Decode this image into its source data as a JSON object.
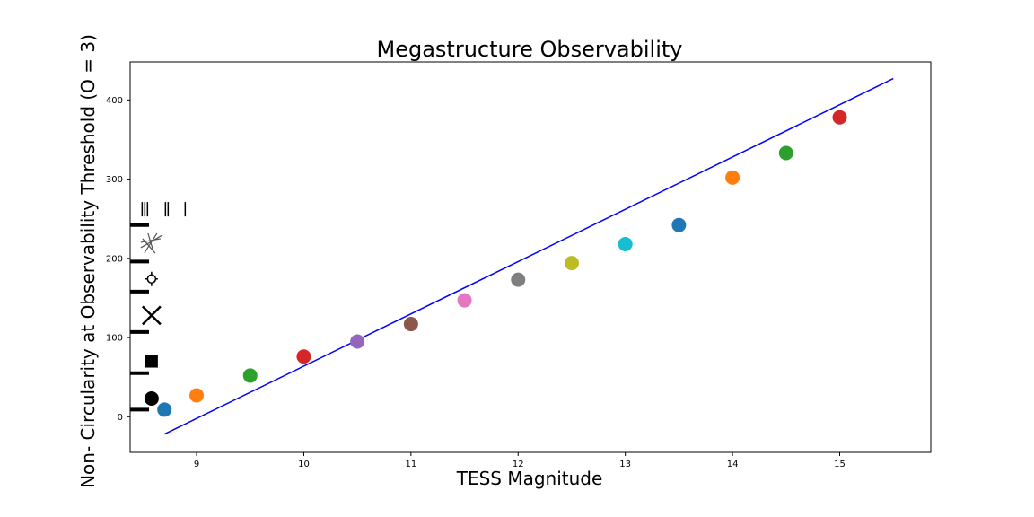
{
  "chart_data": {
    "type": "scatter",
    "title": "Megastructure Observability",
    "xlabel": "TESS Magnitude",
    "ylabel": "Non- Circularity at Observability Threshold (O = 3)",
    "xlim": [
      8.38,
      15.85
    ],
    "ylim": [
      -45,
      448
    ],
    "xticks": [
      9,
      10,
      11,
      12,
      13,
      14,
      15
    ],
    "yticks": [
      0,
      100,
      200,
      300,
      400
    ],
    "grid": false,
    "legend": "none",
    "series": [
      {
        "type": "scatter",
        "colors": [
          "#1f77b4",
          "#ff7f0e",
          "#2ca02c",
          "#d62728",
          "#9467bd",
          "#8c564b",
          "#e377c2",
          "#7f7f7f",
          "#bcbd22",
          "#17becf",
          "#1f77b4",
          "#ff7f0e",
          "#2ca02c",
          "#d62728"
        ],
        "points": [
          {
            "x": 8.7,
            "y": 9
          },
          {
            "x": 9.0,
            "y": 27
          },
          {
            "x": 9.5,
            "y": 52
          },
          {
            "x": 10.0,
            "y": 76
          },
          {
            "x": 10.5,
            "y": 95
          },
          {
            "x": 11.0,
            "y": 117
          },
          {
            "x": 11.5,
            "y": 147
          },
          {
            "x": 12.0,
            "y": 173
          },
          {
            "x": 12.5,
            "y": 194
          },
          {
            "x": 13.0,
            "y": 218
          },
          {
            "x": 13.5,
            "y": 242
          },
          {
            "x": 14.0,
            "y": 302
          },
          {
            "x": 14.5,
            "y": 333
          },
          {
            "x": 15.0,
            "y": 378
          }
        ]
      },
      {
        "type": "line",
        "color": "#0000ff",
        "points": [
          {
            "x": 8.7,
            "y": -22
          },
          {
            "x": 15.5,
            "y": 427
          }
        ]
      }
    ],
    "marker_samples": [
      {
        "marker": "circle",
        "x": 8.58,
        "y": 23
      },
      {
        "marker": "square",
        "x": 8.58,
        "y": 70
      },
      {
        "marker": "x",
        "x": 8.58,
        "y": 128
      },
      {
        "marker": "sun",
        "x": 8.58,
        "y": 174
      },
      {
        "marker": "star-burst",
        "x": 8.58,
        "y": 218
      },
      {
        "marker": "bars",
        "x": 8.5,
        "y": 262
      }
    ],
    "left_dashes_y": [
      9,
      55,
      107,
      158,
      196,
      242
    ]
  }
}
